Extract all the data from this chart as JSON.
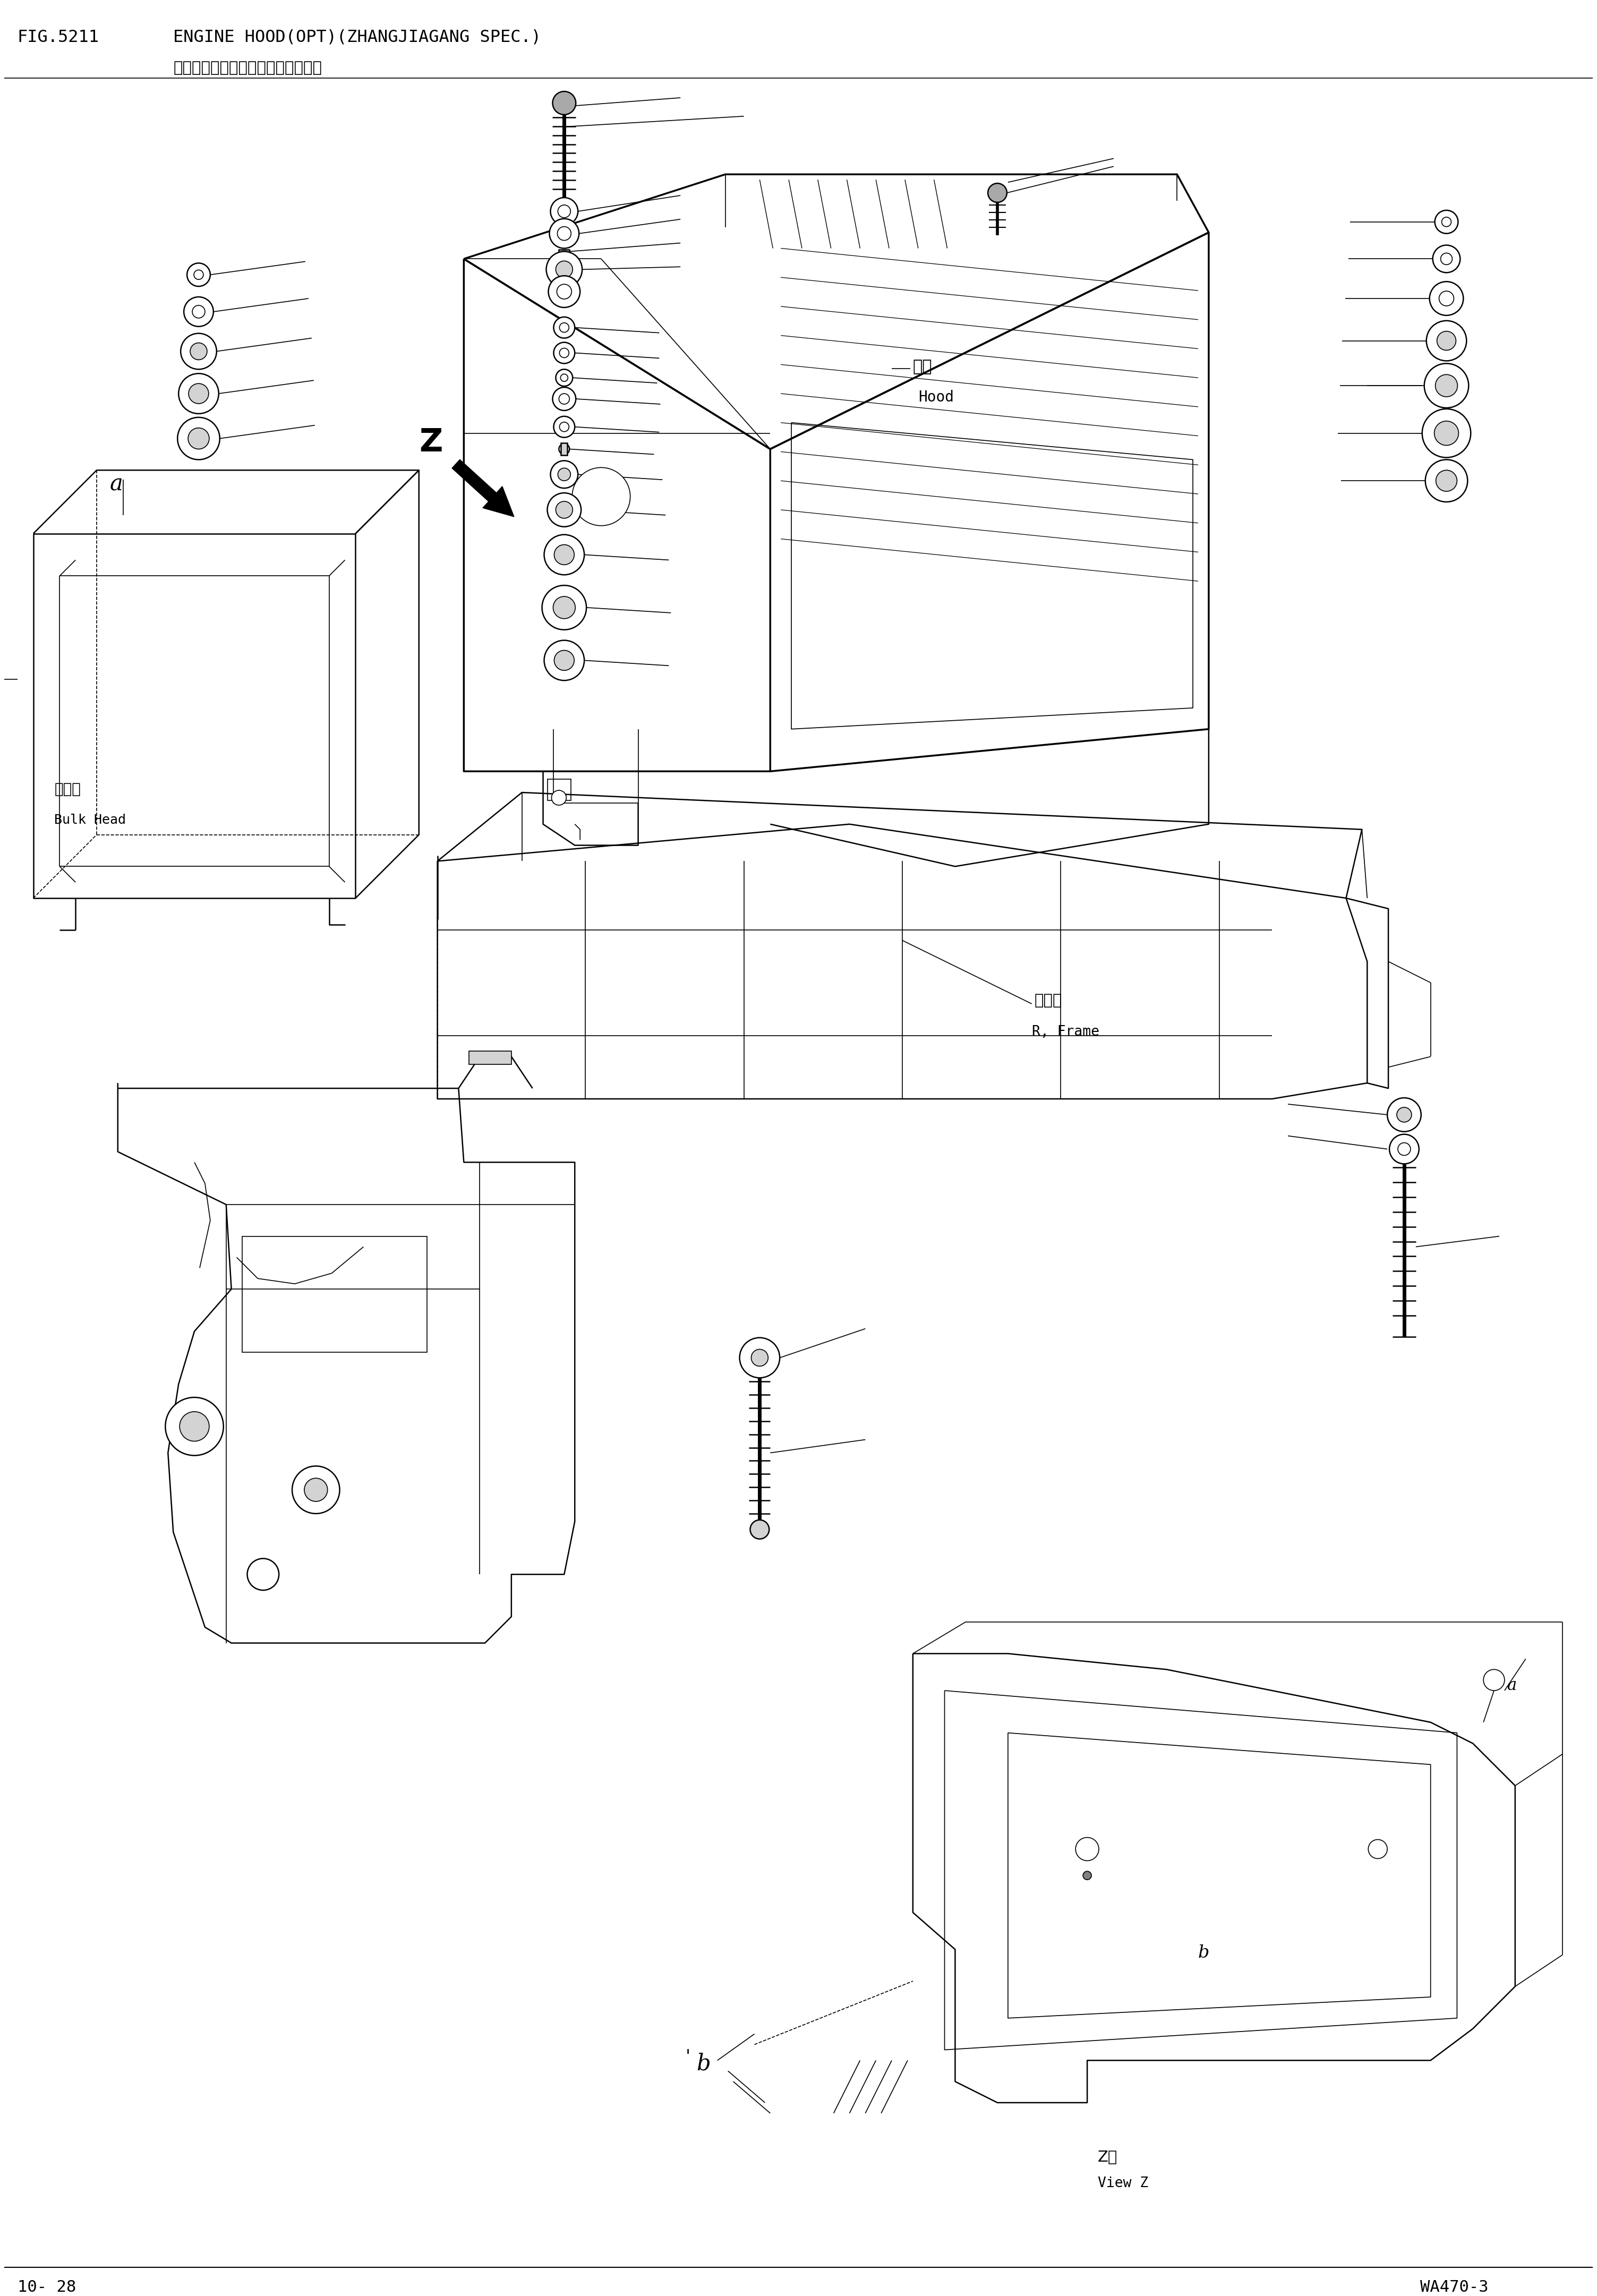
{
  "fig_number": "FIG.5211",
  "title_en": "ENGINE HOOD(OPT)(ZHANGJIAGANG SPEC.)",
  "title_cn": "发动机护罩（选装）（张家港仕样）",
  "page": "10- 28",
  "model": "WA470-3",
  "label_hood_cn": "护罩",
  "label_hood_en": "Hood",
  "label_bulkhead_cn": "隔离笱",
  "label_bulkhead_en": "Bulk Head",
  "label_frame_cn": "后车架",
  "label_frame_en": "R, Frame",
  "label_viewz_cn": "Z视",
  "label_viewz_en": "View Z",
  "label_z": "Z",
  "label_a": "a",
  "label_b": "b",
  "bg_color": "#ffffff",
  "line_color": "#000000"
}
